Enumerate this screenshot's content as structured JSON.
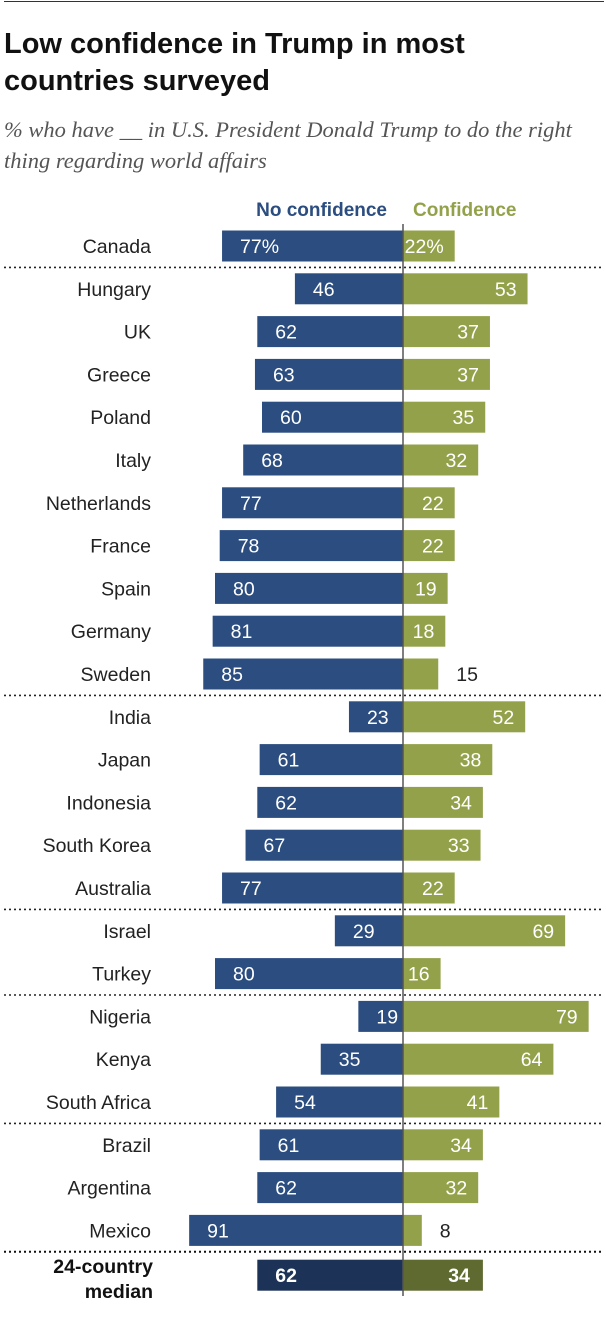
{
  "header": {
    "title": "Low confidence in Trump in most countries surveyed",
    "subtitle": "% who have __ in U.S. President Donald Trump to do the right thing regarding world affairs"
  },
  "colors": {
    "no_confidence": "#2b4d7f",
    "confidence": "#93a24a",
    "median_no_confidence": "#1c3257",
    "median_confidence": "#5f6a31",
    "label_text": "#ffffff",
    "country_text": "#222222"
  },
  "chart_data": {
    "type": "bar",
    "orientation": "diverging-horizontal",
    "title": "Low confidence in Trump in most countries surveyed",
    "subtitle": "% who have __ in U.S. President Donald Trump to do the right thing regarding world affairs",
    "series": [
      {
        "name": "No confidence",
        "values": [
          77,
          46,
          62,
          63,
          60,
          68,
          77,
          78,
          80,
          81,
          85,
          23,
          61,
          62,
          67,
          77,
          29,
          80,
          19,
          35,
          54,
          61,
          62,
          91
        ]
      },
      {
        "name": "Confidence",
        "values": [
          22,
          53,
          37,
          37,
          35,
          32,
          22,
          22,
          19,
          18,
          15,
          52,
          38,
          34,
          33,
          22,
          69,
          16,
          79,
          64,
          41,
          34,
          32,
          8
        ]
      }
    ],
    "categories": [
      "Canada",
      "Hungary",
      "UK",
      "Greece",
      "Poland",
      "Italy",
      "Netherlands",
      "France",
      "Spain",
      "Germany",
      "Sweden",
      "India",
      "Japan",
      "Indonesia",
      "South Korea",
      "Australia",
      "Israel",
      "Turkey",
      "Nigeria",
      "Kenya",
      "South Africa",
      "Brazil",
      "Argentina",
      "Mexico"
    ],
    "value_labels": {
      "no_confidence": [
        "77%",
        "46",
        "62",
        "63",
        "60",
        "68",
        "77",
        "78",
        "80",
        "81",
        "85",
        "23",
        "61",
        "62",
        "67",
        "77",
        "29",
        "80",
        "19",
        "35",
        "54",
        "61",
        "62",
        "91"
      ],
      "confidence": [
        "22%",
        "53",
        "37",
        "37",
        "35",
        "32",
        "22",
        "22",
        "19",
        "18",
        "15",
        "52",
        "38",
        "34",
        "33",
        "22",
        "69",
        "16",
        "79",
        "64",
        "41",
        "34",
        "32",
        "8"
      ]
    },
    "region_dividers_after": [
      "Canada",
      "Sweden",
      "Australia",
      "Turkey",
      "South Africa",
      "Mexico"
    ],
    "median": {
      "label_line1": "24-country",
      "label_line2": "median",
      "no_confidence": 62,
      "confidence": 34
    },
    "legend": [
      "No confidence",
      "Confidence"
    ],
    "legend_position": "top",
    "xlim": [
      -100,
      100
    ]
  }
}
